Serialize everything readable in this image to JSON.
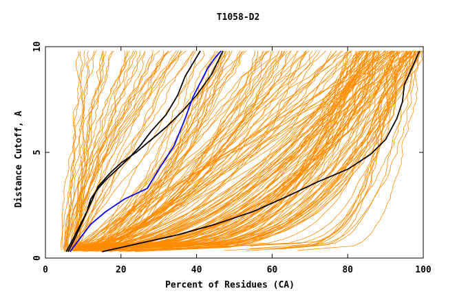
{
  "chart_data": {
    "type": "line",
    "title": "T1058-D2",
    "xlabel": "Percent of Residues (CA)",
    "ylabel": "Distance Cutoff, A",
    "xlim": [
      0,
      100
    ],
    "ylim": [
      0,
      10
    ],
    "xticks": [
      "0",
      "20",
      "40",
      "60",
      "80",
      "100"
    ],
    "yticks": [
      "0",
      "5",
      "10"
    ],
    "grid": false,
    "colors": {
      "background_series": "#ff8c00",
      "highlight_black": "#000000",
      "highlight_blue": "#0000ff",
      "axis": "#000000"
    },
    "highlight_series": [
      {
        "color": "black",
        "x": [
          15,
          25,
          35,
          45,
          55,
          65,
          72,
          80,
          86,
          90,
          93,
          94.5,
          95,
          96.5,
          99
        ],
        "y": [
          0.3,
          0.7,
          1.1,
          1.6,
          2.2,
          3.0,
          3.6,
          4.2,
          4.9,
          5.6,
          6.6,
          7.4,
          8.2,
          8.8,
          9.8
        ]
      },
      {
        "color": "black",
        "x": [
          6,
          8,
          10,
          12,
          14,
          17,
          20,
          24,
          28,
          32,
          36,
          40,
          44,
          47
        ],
        "y": [
          0.3,
          1.0,
          1.8,
          2.6,
          3.4,
          4.0,
          4.5,
          5.0,
          5.6,
          6.2,
          6.9,
          7.7,
          8.7,
          9.8
        ]
      },
      {
        "color": "black",
        "x": [
          5.5,
          7,
          9,
          11,
          12,
          14,
          16,
          19,
          22,
          25,
          28,
          32,
          35,
          37,
          39,
          41
        ],
        "y": [
          0.3,
          0.8,
          1.5,
          2.2,
          2.8,
          3.3,
          3.7,
          4.2,
          4.7,
          5.3,
          6.0,
          6.8,
          7.7,
          8.6,
          9.2,
          9.8
        ]
      },
      {
        "color": "blue",
        "x": [
          6.5,
          9,
          12,
          16,
          21,
          27,
          30,
          34,
          37,
          39,
          41,
          43,
          45,
          46.5
        ],
        "y": [
          0.3,
          0.9,
          1.6,
          2.2,
          2.8,
          3.3,
          4.2,
          5.3,
          6.6,
          7.6,
          8.3,
          9.0,
          9.5,
          9.8
        ]
      }
    ]
  }
}
